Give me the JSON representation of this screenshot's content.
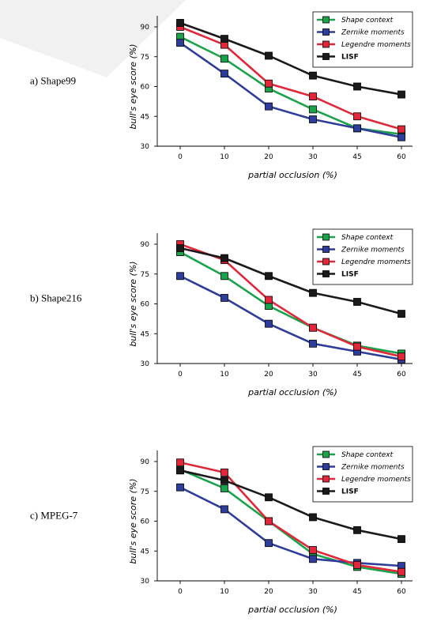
{
  "chart_data": [
    {
      "type": "line",
      "panel_label": "a) Shape99",
      "xlabel": "partial occlusion (%)",
      "ylabel": "bull's eye score (%)",
      "categories": [
        "0",
        "10",
        "20",
        "30",
        "45",
        "60"
      ],
      "ylim": [
        30,
        90
      ],
      "yticks": [
        30,
        45,
        60,
        75,
        90
      ],
      "legend_position": "top-right",
      "series": [
        {
          "name": "Shape context",
          "color": "#1aa34a",
          "values": [
            85,
            74,
            59,
            48.5,
            39,
            36
          ]
        },
        {
          "name": "Zernike moments",
          "color": "#2e3d9a",
          "values": [
            82,
            66.5,
            50,
            43.5,
            39,
            34.5
          ]
        },
        {
          "name": "Legendre moments",
          "color": "#e0283a",
          "values": [
            90,
            81,
            61.5,
            55,
            45,
            38.5
          ]
        },
        {
          "name": "LISF",
          "color": "#1a1a1a",
          "values": [
            92,
            84,
            75.5,
            65.5,
            60,
            56
          ]
        }
      ]
    },
    {
      "type": "line",
      "panel_label": "b) Shape216",
      "xlabel": "partial occlusion (%)",
      "ylabel": "bull's eye score (%)",
      "categories": [
        "0",
        "10",
        "20",
        "30",
        "45",
        "60"
      ],
      "ylim": [
        30,
        90
      ],
      "yticks": [
        30,
        45,
        60,
        75,
        90
      ],
      "legend_position": "top-right",
      "series": [
        {
          "name": "Shape context",
          "color": "#1aa34a",
          "values": [
            86,
            74,
            59,
            48,
            39,
            35
          ]
        },
        {
          "name": "Zernike moments",
          "color": "#2e3d9a",
          "values": [
            74,
            63,
            50,
            40,
            36,
            32
          ]
        },
        {
          "name": "Legendre moments",
          "color": "#e0283a",
          "values": [
            90,
            82,
            62,
            48,
            38.5,
            33.5
          ]
        },
        {
          "name": "LISF",
          "color": "#1a1a1a",
          "values": [
            88,
            83,
            74,
            65.5,
            61,
            55
          ]
        }
      ]
    },
    {
      "type": "line",
      "panel_label": "c) MPEG-7",
      "xlabel": "partial occlusion (%)",
      "ylabel": "bull's eye score (%)",
      "categories": [
        "0",
        "10",
        "20",
        "30",
        "45",
        "60"
      ],
      "ylim": [
        30,
        90
      ],
      "yticks": [
        30,
        45,
        60,
        75,
        90
      ],
      "legend_position": "top-right",
      "series": [
        {
          "name": "Shape context",
          "color": "#1aa34a",
          "values": [
            86,
            76.5,
            60,
            43.5,
            37,
            33.5
          ]
        },
        {
          "name": "Zernike moments",
          "color": "#2e3d9a",
          "values": [
            77,
            66,
            49,
            41,
            39,
            37.5
          ]
        },
        {
          "name": "Legendre moments",
          "color": "#e0283a",
          "values": [
            89.5,
            84.5,
            60,
            45.5,
            38,
            34.5
          ]
        },
        {
          "name": "LISF",
          "color": "#1a1a1a",
          "values": [
            85.5,
            80.5,
            72,
            62,
            55.5,
            51
          ]
        }
      ]
    }
  ]
}
